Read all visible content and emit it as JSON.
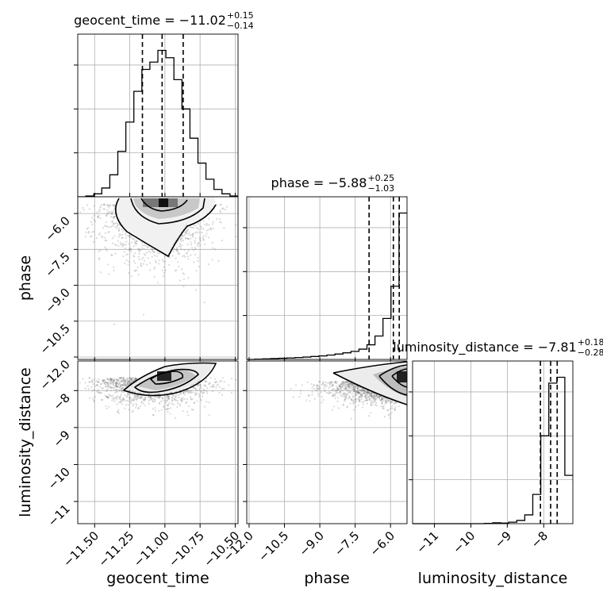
{
  "chart_data": {
    "type": "corner",
    "parameters": [
      {
        "name": "geocent_time",
        "label": "geocent_time",
        "range": [
          -11.62,
          -10.48
        ],
        "ticks": [
          -11.5,
          -11.25,
          -11.0,
          -10.75,
          -10.5
        ],
        "tick_labels": [
          "−11.50",
          "−11.25",
          "−11.00",
          "−10.75",
          "−10.50"
        ],
        "title_prefix": "geocent_time = ",
        "median": "−11.02",
        "plus": "+0.15",
        "minus": "−0.14",
        "quantiles": [
          -11.16,
          -11.02,
          -10.87
        ]
      },
      {
        "name": "phase",
        "label": "phase",
        "range": [
          -12.1,
          -5.3
        ],
        "ticks": [
          -12.0,
          -10.5,
          -9.0,
          -7.5,
          -6.0
        ],
        "tick_labels": [
          "−12.0",
          "−10.5",
          "−9.0",
          "−7.5",
          "−6.0"
        ],
        "title_prefix": "phase = ",
        "median": "−5.88",
        "plus": "+0.25",
        "minus": "−1.03",
        "quantiles": [
          -6.91,
          -5.88,
          -5.63
        ]
      },
      {
        "name": "luminosity_distance",
        "label": "luminosity_distance",
        "range": [
          -11.6,
          -7.2
        ],
        "ticks": [
          -11,
          -10,
          -9,
          -8
        ],
        "tick_labels": [
          "−11",
          "−10",
          "−9",
          "−8"
        ],
        "title_prefix": "luminosity_distance = ",
        "median": "−7.81",
        "plus": "+0.18",
        "minus": "−0.28",
        "quantiles": [
          -8.09,
          -7.81,
          -7.63
        ]
      }
    ],
    "histograms": [
      {
        "param": "geocent_time",
        "edges": [
          -11.62,
          -11.563,
          -11.506,
          -11.449,
          -11.392,
          -11.335,
          -11.278,
          -11.221,
          -11.164,
          -11.107,
          -11.05,
          -10.993,
          -10.936,
          -10.879,
          -10.822,
          -10.765,
          -10.708,
          -10.651,
          -10.594,
          -10.537,
          -10.48
        ],
        "counts": [
          0.0,
          0.005,
          0.02,
          0.06,
          0.15,
          0.31,
          0.51,
          0.72,
          0.87,
          0.92,
          1.0,
          0.95,
          0.8,
          0.6,
          0.4,
          0.23,
          0.12,
          0.05,
          0.02,
          0.005
        ]
      },
      {
        "param": "phase",
        "edges": [
          -12.1,
          -11.76,
          -11.42,
          -11.08,
          -10.74,
          -10.4,
          -10.06,
          -9.72,
          -9.38,
          -9.04,
          -8.7,
          -8.36,
          -8.02,
          -7.68,
          -7.34,
          -7.0,
          -6.66,
          -6.32,
          -5.98,
          -5.64,
          -5.3
        ],
        "counts": [
          0.0,
          0.002,
          0.004,
          0.006,
          0.008,
          0.01,
          0.013,
          0.016,
          0.02,
          0.024,
          0.03,
          0.037,
          0.045,
          0.055,
          0.07,
          0.1,
          0.16,
          0.28,
          0.5,
          1.0
        ]
      },
      {
        "param": "luminosity_distance",
        "edges": [
          -11.6,
          -11.38,
          -11.16,
          -10.94,
          -10.72,
          -10.5,
          -10.28,
          -10.06,
          -9.84,
          -9.62,
          -9.4,
          -9.18,
          -8.96,
          -8.74,
          -8.52,
          -8.3,
          -8.08,
          -7.86,
          -7.64,
          -7.42,
          -7.2
        ],
        "counts": [
          0.0,
          0.0,
          0.0,
          0.0,
          0.0,
          0.0,
          0.0,
          0.0,
          0.0,
          0.002,
          0.006,
          0.004,
          0.01,
          0.022,
          0.06,
          0.2,
          0.6,
          0.96,
          1.0,
          0.33
        ]
      }
    ],
    "contour_panels": [
      {
        "x": "geocent_time",
        "y": "phase",
        "point_cloud": {
          "x_center": -11.05,
          "x_spread": 0.2,
          "y_center": -6.7,
          "y_spread": 1.2
        }
      },
      {
        "x": "geocent_time",
        "y": "luminosity_distance",
        "point_cloud": {
          "x_center": -11.1,
          "x_spread": 0.2,
          "y_center": -7.95,
          "y_spread": 0.35
        }
      },
      {
        "x": "phase",
        "y": "luminosity_distance",
        "point_cloud": {
          "x_center": -7.0,
          "x_spread": 1.4,
          "y_center": -7.9,
          "y_spread": 0.35
        }
      }
    ]
  }
}
